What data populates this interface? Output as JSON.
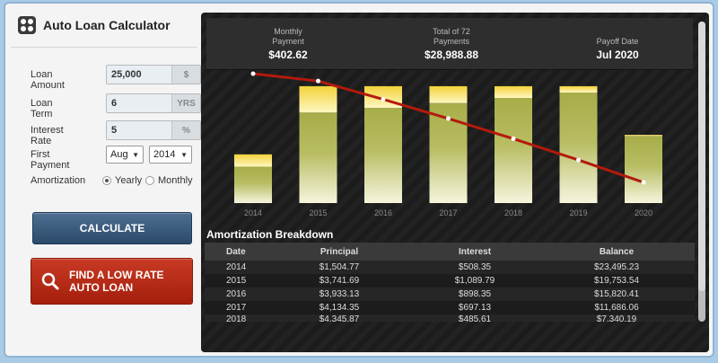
{
  "app": {
    "title": "Auto Loan Calculator"
  },
  "form": {
    "loan_amount": {
      "label": "Loan Amount",
      "value": "25,000",
      "unit": "$"
    },
    "loan_term": {
      "label": "Loan Term",
      "value": "6",
      "unit": "YRS"
    },
    "interest_rate": {
      "label": "Interest Rate",
      "value": "5",
      "unit": "%"
    },
    "first_payment": {
      "label": "First Payment",
      "month": "Aug",
      "year": "2014"
    },
    "amortization": {
      "label": "Amortization",
      "yearly": "Yearly",
      "monthly": "Monthly",
      "selected": "Yearly"
    }
  },
  "buttons": {
    "calculate": "CALCULATE",
    "find_rate_line1": "FIND A LOW RATE",
    "find_rate_line2": "AUTO LOAN"
  },
  "summary": {
    "monthly_label_1": "Monthly",
    "monthly_label_2": "Payment",
    "monthly_value": "$402.62",
    "total_label_1": "Total of 72",
    "total_label_2": "Payments",
    "total_value": "$28,988.88",
    "payoff_label": "Payoff Date",
    "payoff_value": "Jul 2020"
  },
  "chart_data": {
    "type": "bar",
    "categories": [
      "2014",
      "2015",
      "2016",
      "2017",
      "2018",
      "2019",
      "2020"
    ],
    "series": [
      {
        "values": [
          1504.77,
          3741.69,
          3933.13,
          4134.35,
          4345.87,
          4568.25,
          2772
        ]
      },
      {
        "values": [
          508.35,
          1089.79,
          898.35,
          697.13,
          485.61,
          263.23,
          48
        ]
      }
    ],
    "line": {
      "values": [
        25000,
        23495.23,
        19753.54,
        15820.41,
        11686.06,
        7340.19,
        2772
      ]
    },
    "colors": {
      "principal": "#a7ad48",
      "interest": "#f2d23a",
      "line": "#b31a0c"
    }
  },
  "breakdown": {
    "title": "Amortization Breakdown",
    "headers": [
      "Date",
      "Principal",
      "Interest",
      "Balance"
    ],
    "rows": [
      [
        "2014",
        "$1,504.77",
        "$508.35",
        "$23,495.23"
      ],
      [
        "2015",
        "$3,741.69",
        "$1,089.79",
        "$19,753.54"
      ],
      [
        "2016",
        "$3,933.13",
        "$898.35",
        "$15,820.41"
      ],
      [
        "2017",
        "$4,134.35",
        "$697.13",
        "$11,686.06"
      ],
      [
        "2018",
        "$4,345.87",
        "$485.61",
        "$7,340.19"
      ]
    ]
  }
}
